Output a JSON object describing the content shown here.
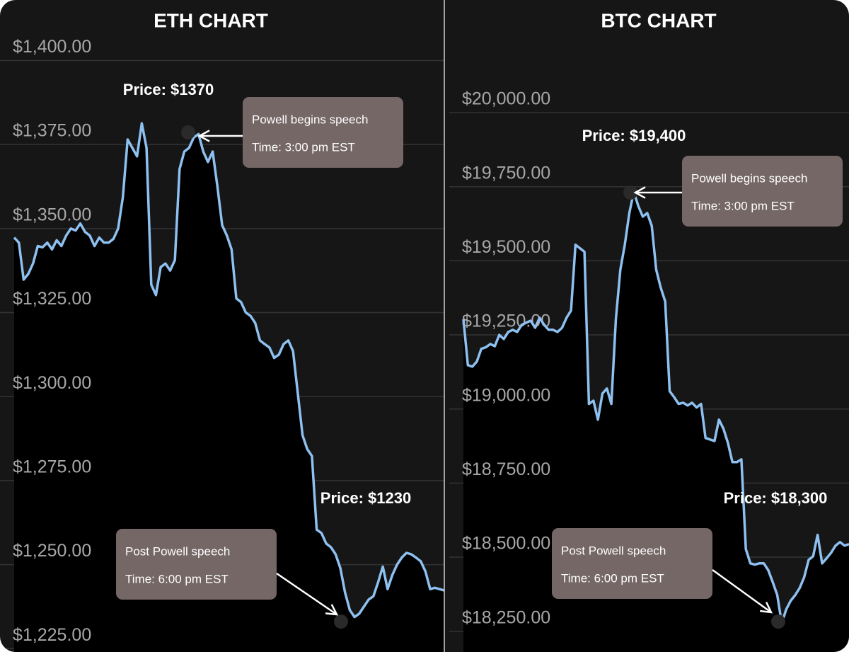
{
  "chart_data": [
    {
      "type": "line",
      "title": "ETH CHART",
      "color": "#8ec0f0",
      "grid": true,
      "ylim": [
        1224,
        1418
      ],
      "yticks": [
        {
          "value": 1225,
          "label": "$1,225.00"
        },
        {
          "value": 1250,
          "label": "$1,250.00"
        },
        {
          "value": 1275,
          "label": "$1,275.00"
        },
        {
          "value": 1300,
          "label": "$1,300.00"
        },
        {
          "value": 1325,
          "label": "$1,325.00"
        },
        {
          "value": 1350,
          "label": "$1,350.00"
        },
        {
          "value": 1375,
          "label": "$1,375.00"
        },
        {
          "value": 1400,
          "label": "$1,400.00"
        }
      ],
      "values": [
        1347.3,
        1345.8,
        1334.8,
        1336.5,
        1339.6,
        1344.8,
        1344.4,
        1345.8,
        1343.8,
        1346.5,
        1344.8,
        1347.9,
        1350,
        1349.4,
        1351.5,
        1349,
        1347.9,
        1344.8,
        1347.3,
        1345.8,
        1345.8,
        1346.9,
        1350,
        1359.4,
        1376.5,
        1374,
        1371.5,
        1381.3,
        1374,
        1333.3,
        1330.2,
        1338.5,
        1339.6,
        1337.5,
        1340.6,
        1367.7,
        1372.9,
        1374,
        1377.1,
        1378.1,
        1372.9,
        1369.8,
        1372.9,
        1362.5,
        1351,
        1347.9,
        1343.8,
        1329.2,
        1328.1,
        1325,
        1324,
        1321.9,
        1316.7,
        1315.6,
        1314.6,
        1311.5,
        1312.5,
        1315.6,
        1316.7,
        1313.5,
        1301,
        1288.5,
        1284.4,
        1282.3,
        1260.4,
        1259.4,
        1256.3,
        1255.2,
        1253.1,
        1249,
        1241.7,
        1236.5,
        1234.4,
        1235.4,
        1237.5,
        1239.6,
        1240.6,
        1244.8,
        1249.4,
        1242.7,
        1246.9,
        1250,
        1252.1,
        1253.5,
        1253.1,
        1252.1,
        1251,
        1248,
        1242.7,
        1243.1,
        1242.7,
        1242.3
      ],
      "annotations": [
        {
          "price": "Price: $1370",
          "event": "Powell begins speech",
          "time": "Time: 3:00 pm EST"
        },
        {
          "price": "Price: $1230",
          "event": "Post Powell speech",
          "time": "Time: 6:00 pm EST"
        }
      ]
    },
    {
      "type": "line",
      "title": "BTC CHART",
      "color": "#8ec0f0",
      "grid": true,
      "ylim": [
        18180,
        20380
      ],
      "yticks": [
        {
          "value": 18250,
          "label": "$18,250.00"
        },
        {
          "value": 18500,
          "label": "$18,500.00"
        },
        {
          "value": 18750,
          "label": "$18,750.00"
        },
        {
          "value": 19000,
          "label": "$19,000.00"
        },
        {
          "value": 19250,
          "label": "$19,250.00"
        },
        {
          "value": 19500,
          "label": "$19,500.00"
        },
        {
          "value": 19750,
          "label": "$19,750.00"
        },
        {
          "value": 20000,
          "label": "$20,000.00"
        }
      ],
      "values": [
        19303,
        19148,
        19143,
        19160,
        19203,
        19208,
        19219,
        19212,
        19250,
        19236,
        19260,
        19267,
        19260,
        19284,
        19291,
        19298,
        19274,
        19308,
        19284,
        19267,
        19267,
        19260,
        19274,
        19308,
        19332,
        19554,
        19542,
        19530,
        19017,
        19028,
        18964,
        19052,
        19069,
        19017,
        19303,
        19470,
        19554,
        19661,
        19733,
        19685,
        19649,
        19661,
        19618,
        19470,
        19410,
        19363,
        19060,
        19040,
        19017,
        19021,
        19012,
        19021,
        19005,
        19017,
        18902,
        18897,
        18892,
        18964,
        18933,
        18885,
        18821,
        18821,
        18830,
        18527,
        18479,
        18475,
        18479,
        18479,
        18456,
        18415,
        18372,
        18277,
        18324,
        18353,
        18372,
        18396,
        18432,
        18491,
        18503,
        18575,
        18479,
        18496,
        18515,
        18539,
        18551,
        18539,
        18544
      ],
      "annotations": [
        {
          "price": "Price: $19,400",
          "event": "Powell begins speech",
          "time": "Time: 3:00 pm EST"
        },
        {
          "price": "Price: $18,300",
          "event": "Post Powell speech",
          "time": "Time: 6:00 pm EST"
        }
      ]
    }
  ]
}
